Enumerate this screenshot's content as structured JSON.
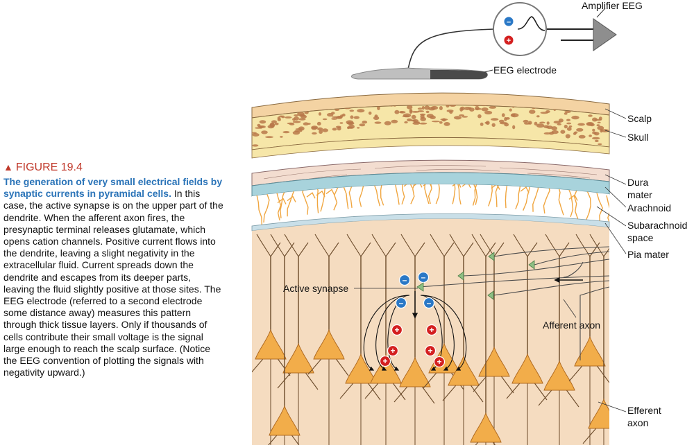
{
  "caption": {
    "figure_label": "FIGURE 19.4",
    "title": "The generation of very small electrical fields by synaptic currents in pyramidal cells.",
    "body": "In this case, the active synapse is on the upper part of the dendrite. When the afferent axon fires, the presynaptic terminal releases glutamate, which opens cation channels. Positive current flows into the dendrite, leaving a slight negativity in the extracellular fluid. Current spreads down the dendrite and escapes from its deeper parts, leaving the fluid slightly positive at those sites. The EEG electrode (referred to a second electrode some distance away) measures this pattern through thick tissue layers. Only if thousands of cells contribute their small voltage is the signal large enough to reach the scalp surface. (Notice the EEG convention of plotting the signals with negativity upward.)"
  },
  "labels": {
    "amplifier": "Amplifier EEG",
    "electrode": "EEG electrode",
    "scalp": "Scalp",
    "skull": "Skull",
    "dura_1": "Dura",
    "dura_2": "mater",
    "arachnoid": "Arachnoid",
    "subarachnoid_1": "Subarachnoid",
    "subarachnoid_2": "space",
    "pia": "Pia mater",
    "active_synapse": "Active synapse",
    "afferent_axon": "Afferent axon",
    "efferent_1": "Efferent",
    "efferent_2": "axon"
  },
  "symbols": {
    "negative": "–",
    "positive": "+"
  },
  "colors": {
    "scalp": "#f4d3a3",
    "skull": "#f6e6a8",
    "skull_bone": "#b9784a",
    "dura": "#f3ddd0",
    "arachnoid": "#a8d3dc",
    "subarachnoid_fibers": "#f0a640",
    "cortex": "#f5dcc0",
    "neuron": "#f2ad4a",
    "synapse": "#8dbf84",
    "negative_charge": "#2a78c6",
    "positive_charge": "#d42020",
    "caption_title": "#2b74b8",
    "figure_label": "#c0392b"
  }
}
